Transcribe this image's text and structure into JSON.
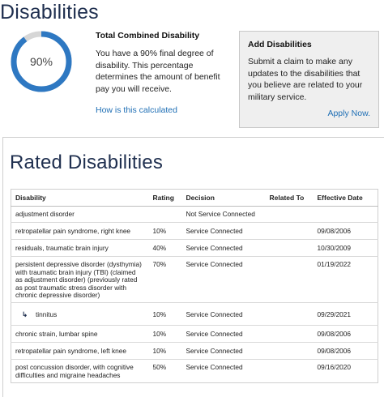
{
  "page": {
    "title": "Disabilities"
  },
  "rating": {
    "percent_label": "90%",
    "percent_value": 90,
    "ring_color": "#2e78c2",
    "track_color": "#d6d6d6"
  },
  "combined": {
    "heading": "Total Combined Disability",
    "text": "You have a 90% final degree of disability. This percentage determines the amount of benefit pay you will receive.",
    "link": "How is this calculated"
  },
  "add": {
    "heading": "Add Disabilities",
    "text": "Submit a claim to make any updates to the disabilities that you believe are related to your military service.",
    "link": "Apply Now."
  },
  "rated": {
    "heading": "Rated Disabilities",
    "columns": [
      "Disability",
      "Rating",
      "Decision",
      "Related To",
      "Effective Date"
    ],
    "rows": [
      {
        "disability": "adjustment disorder",
        "rating": "",
        "decision": "Not Service Connected",
        "related": "",
        "date": ""
      },
      {
        "disability": "retropatellar pain syndrome, right knee",
        "rating": "10%",
        "decision": "Service Connected",
        "related": "",
        "date": "09/08/2006"
      },
      {
        "disability": "residuals, traumatic brain injury",
        "rating": "40%",
        "decision": "Service Connected",
        "related": "",
        "date": "10/30/2009"
      },
      {
        "disability": "persistent depressive disorder (dysthymia) with traumatic brain injury (TBI) (claimed as adjustment disorder) (previously rated as post traumatic stress disorder with chronic depressive disorder)",
        "rating": "70%",
        "decision": "Service Connected",
        "related": "",
        "date": "01/19/2022"
      },
      {
        "disability": "tinnitus",
        "rating": "10%",
        "decision": "Service Connected",
        "related": "",
        "date": "09/29/2021"
      },
      {
        "disability": "chronic strain, lumbar spine",
        "rating": "10%",
        "decision": "Service Connected",
        "related": "",
        "date": "09/08/2006"
      },
      {
        "disability": "retropatellar pain syndrome, left knee",
        "rating": "10%",
        "decision": "Service Connected",
        "related": "",
        "date": "09/08/2006"
      },
      {
        "disability": "post concussion disorder, with cognitive difficulties and migraine headaches",
        "rating": "50%",
        "decision": "Service Connected",
        "related": "",
        "date": "09/16/2020"
      }
    ]
  }
}
